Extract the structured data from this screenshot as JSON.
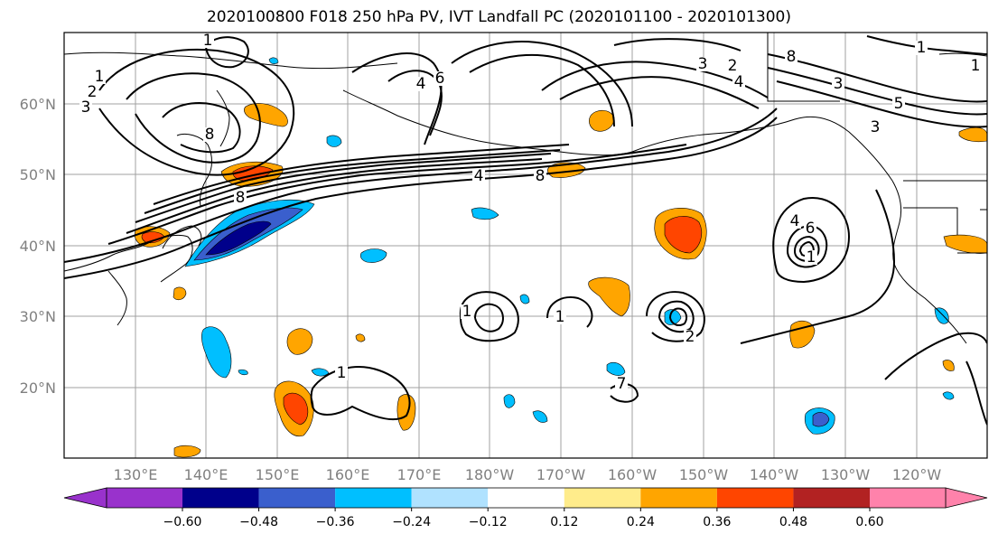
{
  "chart_data": {
    "type": "contour-map",
    "title": "2020100800 F018 250 hPa PV, IVT Landfall PC (2020101100 - 2020101300)",
    "x_ticks": [
      "130°E",
      "140°E",
      "150°E",
      "160°E",
      "170°E",
      "180°W",
      "170°W",
      "160°W",
      "150°W",
      "140°W",
      "130°W",
      "120°W"
    ],
    "y_ticks": [
      "60°N",
      "50°N",
      "40°N",
      "30°N",
      "20°N"
    ],
    "colorbar": {
      "levels": [
        -0.6,
        -0.48,
        -0.36,
        -0.24,
        -0.12,
        0.12,
        0.24,
        0.36,
        0.48,
        0.6
      ],
      "labels": [
        "−0.60",
        "−0.48",
        "−0.36",
        "−0.24",
        "−0.12",
        "0.12",
        "0.24",
        "0.36",
        "0.48",
        "0.60"
      ],
      "colors": [
        "#9932cc",
        "#00008b",
        "#3a5fcd",
        "#00bfff",
        "#b0e2ff",
        "#ffffff",
        "#ffec8b",
        "#ffa500",
        "#ff4500",
        "#b22222",
        "#ff82ab"
      ],
      "extend": "both"
    },
    "pv_contour_labels": [
      "1",
      "2",
      "3",
      "8",
      "1",
      "4",
      "6",
      "8",
      "3",
      "2",
      "4",
      "5",
      "1",
      "1",
      "1",
      "1",
      "1",
      "2",
      "4",
      "6",
      "1",
      "3",
      "3",
      "4",
      "8",
      "8",
      "7"
    ],
    "grid": true
  }
}
